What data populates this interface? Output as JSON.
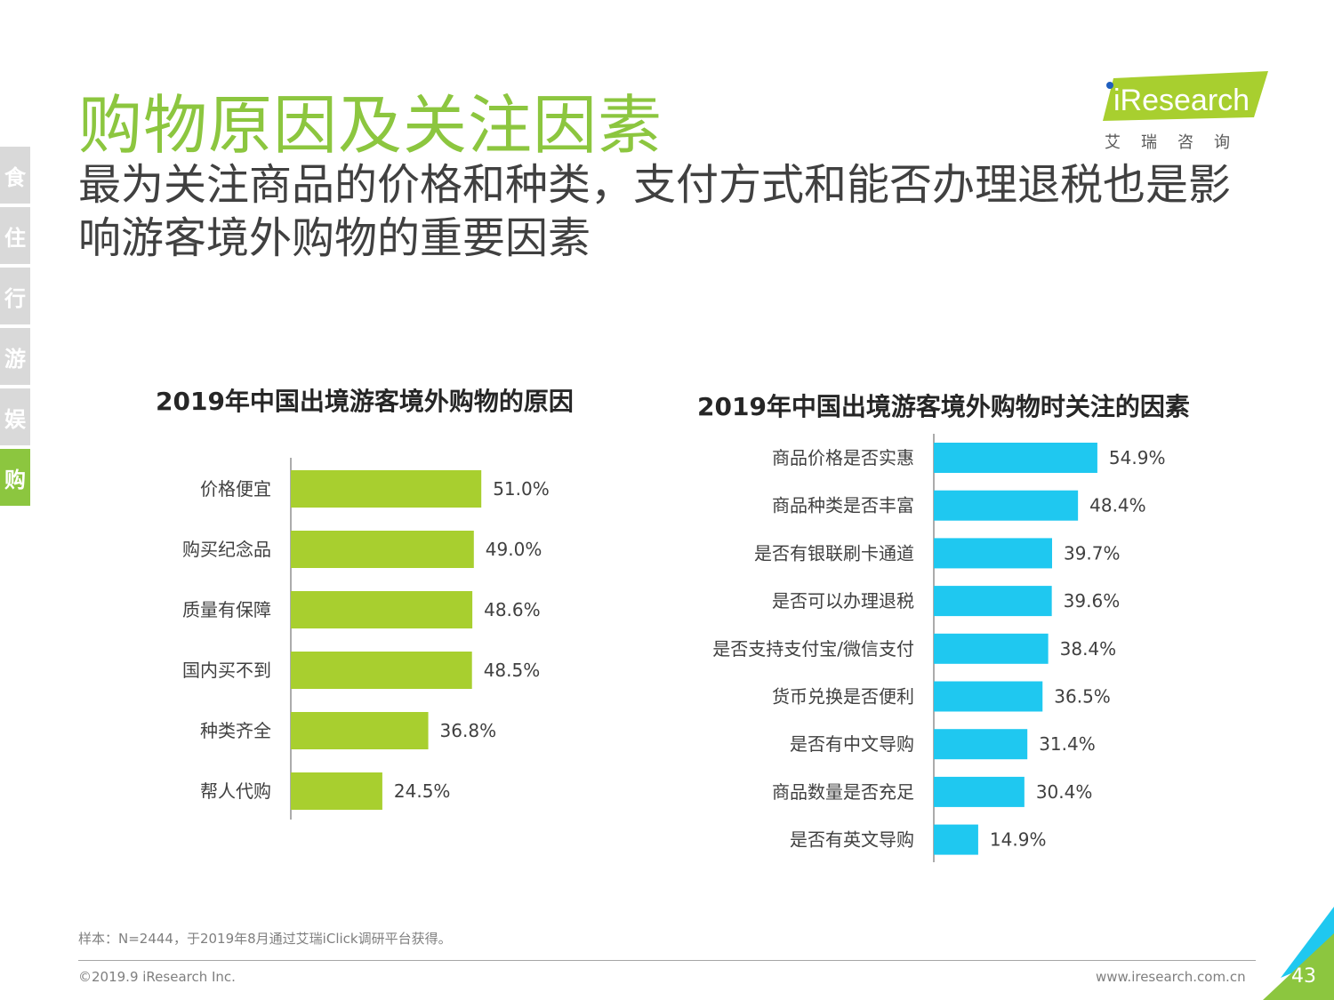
{
  "side_nav": {
    "items": [
      {
        "label": "食",
        "active": false
      },
      {
        "label": "住",
        "active": false
      },
      {
        "label": "行",
        "active": false
      },
      {
        "label": "游",
        "active": false
      },
      {
        "label": "娱",
        "active": false
      },
      {
        "label": "购",
        "active": true
      }
    ]
  },
  "header": {
    "title": "购物原因及关注因素",
    "subtitle": "最为关注商品的价格和种类，支付方式和能否办理退税也是影响游客境外购物的重要因素"
  },
  "logo": {
    "brand": "iResearch",
    "brand_cn": "艾瑞咨询"
  },
  "colors": {
    "title_green": "#8cc63f",
    "bar_green": "#a8cf2f",
    "bar_blue": "#1fc8f0",
    "tab_gray": "#d9d9d9"
  },
  "chart_data": [
    {
      "type": "bar",
      "orientation": "horizontal",
      "title": "2019年中国出境游客境外购物的原因",
      "categories": [
        "价格便宜",
        "购买纪念品",
        "质量有保障",
        "国内买不到",
        "种类齐全",
        "帮人代购"
      ],
      "values": [
        51.0,
        49.0,
        48.6,
        48.5,
        36.8,
        24.5
      ],
      "labels": [
        "51.0%",
        "49.0%",
        "48.6%",
        "48.5%",
        "36.8%",
        "24.5%"
      ],
      "unit": "%",
      "color": "#a8cf2f"
    },
    {
      "type": "bar",
      "orientation": "horizontal",
      "title": "2019年中国出境游客境外购物时关注的因素",
      "categories": [
        "商品价格是否实惠",
        "商品种类是否丰富",
        "是否有银联刷卡通道",
        "是否可以办理退税",
        "是否支持支付宝/微信支付",
        "货币兑换是否便利",
        "是否有中文导购",
        "商品数量是否充足",
        "是否有英文导购"
      ],
      "values": [
        54.9,
        48.4,
        39.7,
        39.6,
        38.4,
        36.5,
        31.4,
        30.4,
        14.9
      ],
      "labels": [
        "54.9%",
        "48.4%",
        "39.7%",
        "39.6%",
        "38.4%",
        "36.5%",
        "31.4%",
        "30.4%",
        "14.9%"
      ],
      "unit": "%",
      "color": "#1fc8f0"
    }
  ],
  "footer": {
    "footnote": "样本：N=2444，于2019年8月通过艾瑞iClick调研平台获得。",
    "copyright": "©2019.9 iResearch Inc.",
    "website": "www.iresearch.com.cn",
    "page_number": "43"
  }
}
